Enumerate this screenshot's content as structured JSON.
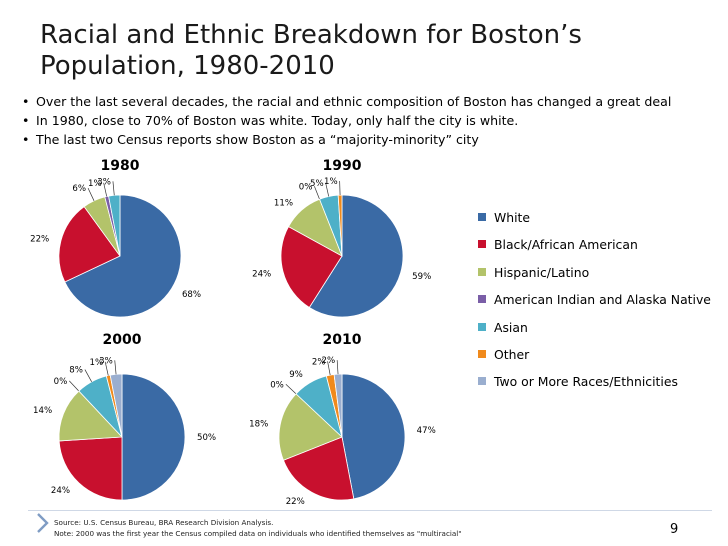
{
  "slide": {
    "title": "Racial and Ethnic Breakdown for Boston’s Population, 1980-2010",
    "bullets": [
      "Over the last several decades, the racial and ethnic composition of Boston has changed a great deal",
      "In 1980, close to 70% of Boston was white. Today, only half the city is white.",
      "The last two Census reports show Boston as a “majority-minority” city"
    ],
    "bullet_glyph": "•",
    "source_lines": [
      "Source: U.S. Census Bureau, BRA Research Division Analysis.",
      "Note: 2000 was the first year the Census compiled data on individuals who identified themselves as \"multiracial\""
    ],
    "page_number": "9"
  },
  "chart_data": {
    "type": "pie",
    "categories": [
      "White",
      "Black/African American",
      "Hispanic/Latino",
      "American Indian and Alaska Native",
      "Asian",
      "Other",
      "Two or More Races/Ethnicities"
    ],
    "colors": [
      "#3a6aa5",
      "#c8102e",
      "#b3c36a",
      "#7a5ea7",
      "#4eb0c8",
      "#f08a1c",
      "#9aaecf"
    ],
    "legend_position": "right",
    "pies": [
      {
        "title": "1980",
        "values": [
          68,
          22,
          6,
          1,
          3,
          0,
          0
        ],
        "labels": [
          "68%",
          "22%",
          "6%",
          "1%",
          "3%",
          "",
          ""
        ]
      },
      {
        "title": "1990",
        "values": [
          59,
          24,
          11,
          0,
          5,
          1,
          0
        ],
        "labels": [
          "59%",
          "24%",
          "11%",
          "0%",
          "5%",
          "1%",
          ""
        ]
      },
      {
        "title": "2000",
        "values": [
          50,
          24,
          14,
          0,
          8,
          1,
          3
        ],
        "labels": [
          "50%",
          "24%",
          "14%",
          "0%",
          "8%",
          "1%",
          "3%"
        ]
      },
      {
        "title": "2010",
        "values": [
          47,
          22,
          18,
          0,
          9,
          2,
          2
        ],
        "labels": [
          "47%",
          "22%",
          "18%",
          "0%",
          "9%",
          "2%",
          "2%"
        ]
      }
    ]
  }
}
